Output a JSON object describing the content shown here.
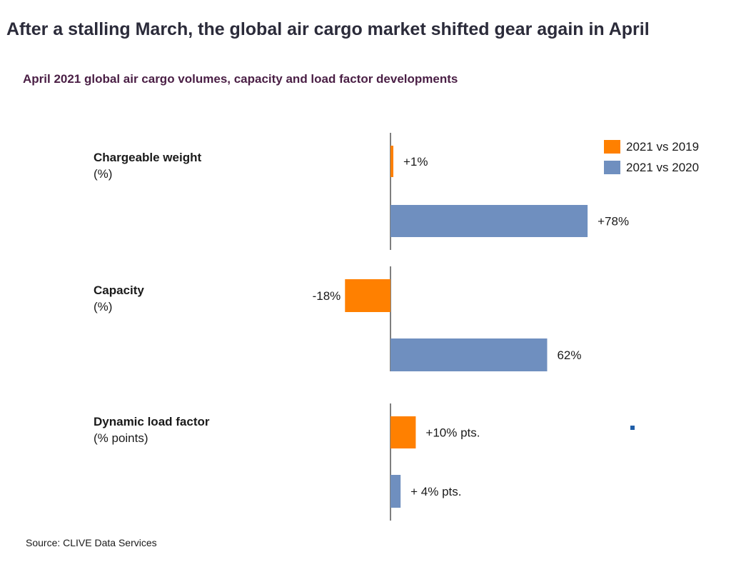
{
  "title": "After a stalling March, the global air cargo market shifted gear again in April",
  "subtitle": "April 2021 global air cargo volumes, capacity and load factor developments",
  "source": "Source: CLIVE Data Services",
  "colors": {
    "s2019": "#ff8000",
    "s2020": "#6f8fbf",
    "axis": "#555555"
  },
  "chart_data": {
    "type": "bar",
    "orientation": "horizontal",
    "categories": [
      {
        "name": "Chargeable weight",
        "unit": "(%)"
      },
      {
        "name": "Capacity",
        "unit": "(%)"
      },
      {
        "name": "Dynamic load factor",
        "unit": "(% points)"
      }
    ],
    "series": [
      {
        "name": "2021 vs 2019",
        "values": [
          1,
          -18,
          10
        ],
        "labels": [
          "+1%",
          "-18%",
          "+10% pts."
        ]
      },
      {
        "name": "2021 vs 2020",
        "values": [
          78,
          62,
          4
        ],
        "labels": [
          "+78%",
          "62%",
          "+ 4% pts."
        ]
      }
    ],
    "legend_position": "top-right",
    "grid": false
  }
}
